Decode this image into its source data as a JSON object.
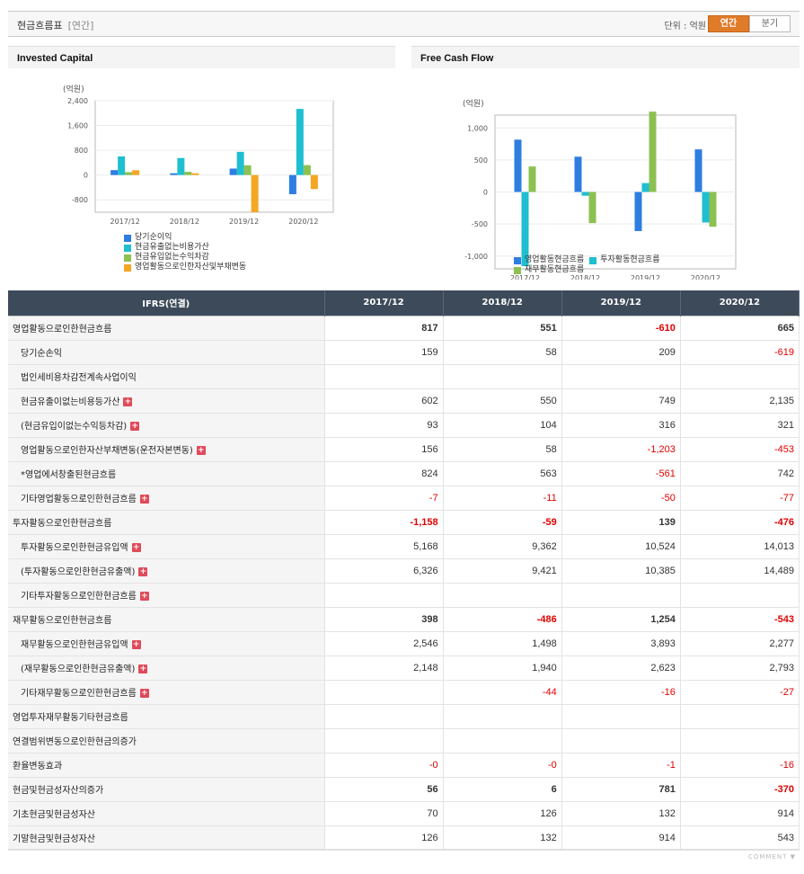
{
  "header": {
    "title": "현금흐름표",
    "subtitle": "[연간]",
    "unit": "단위 : 억원",
    "seg_annual": "연간",
    "seg_quarter": "분기"
  },
  "colors": {
    "blue": "#2e7de1",
    "cyan": "#1fbfd1",
    "green": "#8cc152",
    "orange": "#f5a623"
  },
  "invested": {
    "title": "Invested Capital",
    "chart_data": {
      "type": "bar",
      "unit_label": "(억원)",
      "categories": [
        "2017/12",
        "2018/12",
        "2019/12",
        "2020/12"
      ],
      "ylim": [
        -1200,
        2400
      ],
      "yticks": [
        -800,
        0,
        800,
        1600,
        2400
      ],
      "ytick_labels": [
        "-800",
        "0",
        "800",
        "1,600",
        "2,400"
      ],
      "series": [
        {
          "name": "당기순이익",
          "color": "#2e7de1",
          "values": [
            159,
            58,
            209,
            -619
          ]
        },
        {
          "name": "현금유출없는비용가산",
          "color": "#1fbfd1",
          "values": [
            602,
            550,
            749,
            2135
          ]
        },
        {
          "name": "현금유입없는수익차감",
          "color": "#8cc152",
          "values": [
            93,
            104,
            316,
            321
          ]
        },
        {
          "name": "영업활동으로인한자산및부채변동",
          "color": "#f5a623",
          "values": [
            156,
            58,
            -1203,
            -453
          ]
        }
      ]
    }
  },
  "fcf": {
    "title": "Free Cash Flow",
    "chart_data": {
      "type": "bar",
      "unit_label": "(억원)",
      "categories": [
        "2017/12",
        "2018/12",
        "2019/12",
        "2020/12"
      ],
      "ylim": [
        -1200,
        1200
      ],
      "yticks": [
        -1000,
        -500,
        0,
        500,
        1000
      ],
      "ytick_labels": [
        "-1,000",
        "-500",
        "0",
        "500",
        "1,000"
      ],
      "series": [
        {
          "name": "영업활동현금흐름",
          "color": "#2e7de1",
          "values": [
            817,
            551,
            -610,
            665
          ]
        },
        {
          "name": "투자활동현금흐름",
          "color": "#1fbfd1",
          "values": [
            -1158,
            -59,
            139,
            -476
          ]
        },
        {
          "name": "재무활동현금흐름",
          "color": "#8cc152",
          "values": [
            398,
            -486,
            1254,
            -543
          ]
        }
      ]
    }
  },
  "table": {
    "head": [
      "IFRS(연결)",
      "2017/12",
      "2018/12",
      "2019/12",
      "2020/12"
    ],
    "rows": [
      {
        "label": "영업활동으로인한현금흐름",
        "main": true,
        "plus": false,
        "values": [
          "817",
          "551",
          "-610",
          "665"
        ]
      },
      {
        "label": "당기순손익",
        "main": false,
        "plus": false,
        "values": [
          "159",
          "58",
          "209",
          "-619"
        ]
      },
      {
        "label": "법인세비용차감전계속사업이익",
        "main": false,
        "plus": false,
        "values": [
          "",
          "",
          "",
          ""
        ]
      },
      {
        "label": "현금유출이없는비용등가산",
        "main": false,
        "plus": true,
        "values": [
          "602",
          "550",
          "749",
          "2,135"
        ]
      },
      {
        "label": "(현금유입이없는수익등차감)",
        "main": false,
        "plus": true,
        "values": [
          "93",
          "104",
          "316",
          "321"
        ]
      },
      {
        "label": "영업활동으로인한자산부채변동(운전자본변동)",
        "main": false,
        "plus": true,
        "values": [
          "156",
          "58",
          "-1,203",
          "-453"
        ]
      },
      {
        "label": "*영업에서창출된현금흐름",
        "main": false,
        "plus": false,
        "values": [
          "824",
          "563",
          "-561",
          "742"
        ]
      },
      {
        "label": "기타영업활동으로인한현금흐름",
        "main": false,
        "plus": true,
        "values": [
          "-7",
          "-11",
          "-50",
          "-77"
        ]
      },
      {
        "label": "투자활동으로인한현금흐름",
        "main": true,
        "plus": false,
        "values": [
          "-1,158",
          "-59",
          "139",
          "-476"
        ]
      },
      {
        "label": "투자활동으로인한현금유입액",
        "main": false,
        "plus": true,
        "values": [
          "5,168",
          "9,362",
          "10,524",
          "14,013"
        ]
      },
      {
        "label": "(투자활동으로인한현금유출액)",
        "main": false,
        "plus": true,
        "values": [
          "6,326",
          "9,421",
          "10,385",
          "14,489"
        ]
      },
      {
        "label": "기타투자활동으로인한현금흐름",
        "main": false,
        "plus": true,
        "values": [
          "",
          "",
          "",
          ""
        ]
      },
      {
        "label": "재무활동으로인한현금흐름",
        "main": true,
        "plus": false,
        "values": [
          "398",
          "-486",
          "1,254",
          "-543"
        ]
      },
      {
        "label": "재무활동으로인한현금유입액",
        "main": false,
        "plus": true,
        "values": [
          "2,546",
          "1,498",
          "3,893",
          "2,277"
        ]
      },
      {
        "label": "(재무활동으로인한현금유출액)",
        "main": false,
        "plus": true,
        "values": [
          "2,148",
          "1,940",
          "2,623",
          "2,793"
        ]
      },
      {
        "label": "기타재무활동으로인한현금흐름",
        "main": false,
        "plus": true,
        "values": [
          "",
          "-44",
          "-16",
          "-27"
        ]
      },
      {
        "label": "영업투자재무활동기타현금흐름",
        "main": true,
        "plus": false,
        "flat": true,
        "values": [
          "",
          "",
          "",
          ""
        ]
      },
      {
        "label": "연결범위변동으로인한현금의증가",
        "main": true,
        "plus": false,
        "flat": true,
        "values": [
          "",
          "",
          "",
          ""
        ]
      },
      {
        "label": "환율변동효과",
        "main": true,
        "plus": false,
        "flat": true,
        "values": [
          "-0",
          "-0",
          "-1",
          "-16"
        ]
      },
      {
        "label": "현금및현금성자산의증가",
        "main": true,
        "plus": false,
        "values": [
          "56",
          "6",
          "781",
          "-370"
        ]
      },
      {
        "label": "기초현금및현금성자산",
        "main": true,
        "plus": false,
        "flat": true,
        "values": [
          "70",
          "126",
          "132",
          "914"
        ]
      },
      {
        "label": "기말현금및현금성자산",
        "main": true,
        "plus": false,
        "flat": true,
        "values": [
          "126",
          "132",
          "914",
          "543"
        ]
      }
    ],
    "plus_glyph": "+"
  },
  "footer": {
    "comment": "COMMENT ▼"
  }
}
